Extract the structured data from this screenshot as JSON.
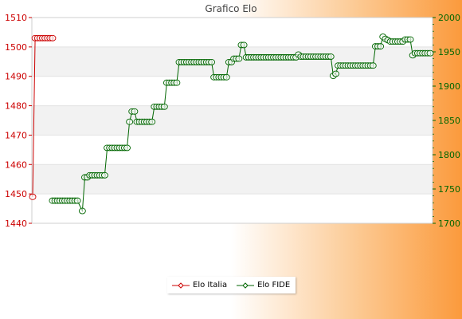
{
  "chart_data": {
    "type": "line",
    "title": "Grafico Elo",
    "xlabel": "",
    "ylabel": "",
    "y_left": {
      "ylim": [
        1440,
        1510
      ],
      "ticks": [
        1440,
        1450,
        1460,
        1470,
        1480,
        1490,
        1500,
        1510
      ],
      "color": "#cc0000"
    },
    "y_right": {
      "ylim": [
        1700,
        2000
      ],
      "ticks": [
        1700,
        1750,
        1800,
        1850,
        1900,
        1950,
        2000
      ],
      "color": "#006600"
    },
    "grid": true,
    "legend_position": "bottom-center",
    "series": [
      {
        "name": "Elo Italia",
        "axis": "left",
        "color": "#cc0000",
        "points": [
          [
            0,
            1449
          ],
          [
            1,
            1503
          ],
          [
            2,
            1503
          ],
          [
            3,
            1503
          ],
          [
            4,
            1503
          ],
          [
            5,
            1503
          ],
          [
            6,
            1503
          ],
          [
            7,
            1503
          ],
          [
            8,
            1503
          ]
        ]
      },
      {
        "name": "Elo FIDE",
        "axis": "right",
        "color": "#006600",
        "points": [
          [
            8,
            1733
          ],
          [
            9,
            1733
          ],
          [
            10,
            1733
          ],
          [
            11,
            1733
          ],
          [
            12,
            1733
          ],
          [
            13,
            1733
          ],
          [
            14,
            1733
          ],
          [
            15,
            1733
          ],
          [
            16,
            1733
          ],
          [
            17,
            1733
          ],
          [
            18,
            1733
          ],
          [
            20,
            1718
          ],
          [
            21,
            1767
          ],
          [
            22,
            1767
          ],
          [
            23,
            1770
          ],
          [
            24,
            1770
          ],
          [
            25,
            1770
          ],
          [
            26,
            1770
          ],
          [
            27,
            1770
          ],
          [
            28,
            1770
          ],
          [
            29,
            1770
          ],
          [
            30,
            1810
          ],
          [
            31,
            1810
          ],
          [
            32,
            1810
          ],
          [
            33,
            1810
          ],
          [
            34,
            1810
          ],
          [
            35,
            1810
          ],
          [
            36,
            1810
          ],
          [
            37,
            1810
          ],
          [
            38,
            1810
          ],
          [
            39,
            1848
          ],
          [
            40,
            1863
          ],
          [
            41,
            1863
          ],
          [
            42,
            1848
          ],
          [
            43,
            1848
          ],
          [
            44,
            1848
          ],
          [
            45,
            1848
          ],
          [
            46,
            1848
          ],
          [
            47,
            1848
          ],
          [
            48,
            1848
          ],
          [
            49,
            1870
          ],
          [
            50,
            1870
          ],
          [
            51,
            1870
          ],
          [
            52,
            1870
          ],
          [
            53,
            1870
          ],
          [
            54,
            1905
          ],
          [
            55,
            1905
          ],
          [
            56,
            1905
          ],
          [
            57,
            1905
          ],
          [
            58,
            1905
          ],
          [
            59,
            1935
          ],
          [
            60,
            1935
          ],
          [
            61,
            1935
          ],
          [
            62,
            1935
          ],
          [
            63,
            1935
          ],
          [
            64,
            1935
          ],
          [
            65,
            1935
          ],
          [
            66,
            1935
          ],
          [
            67,
            1935
          ],
          [
            68,
            1935
          ],
          [
            69,
            1935
          ],
          [
            70,
            1935
          ],
          [
            71,
            1935
          ],
          [
            72,
            1935
          ],
          [
            73,
            1913
          ],
          [
            74,
            1913
          ],
          [
            75,
            1913
          ],
          [
            76,
            1913
          ],
          [
            77,
            1913
          ],
          [
            78,
            1913
          ],
          [
            79,
            1935
          ],
          [
            80,
            1935
          ],
          [
            81,
            1940
          ],
          [
            82,
            1940
          ],
          [
            83,
            1940
          ],
          [
            84,
            1960
          ],
          [
            85,
            1960
          ],
          [
            86,
            1942
          ],
          [
            87,
            1942
          ],
          [
            88,
            1942
          ],
          [
            89,
            1942
          ],
          [
            90,
            1942
          ],
          [
            91,
            1942
          ],
          [
            92,
            1942
          ],
          [
            93,
            1942
          ],
          [
            94,
            1942
          ],
          [
            95,
            1942
          ],
          [
            96,
            1942
          ],
          [
            97,
            1942
          ],
          [
            98,
            1942
          ],
          [
            99,
            1942
          ],
          [
            100,
            1942
          ],
          [
            101,
            1942
          ],
          [
            102,
            1942
          ],
          [
            103,
            1942
          ],
          [
            104,
            1942
          ],
          [
            105,
            1942
          ],
          [
            106,
            1942
          ],
          [
            107,
            1946
          ],
          [
            108,
            1943
          ],
          [
            109,
            1943
          ],
          [
            110,
            1943
          ],
          [
            111,
            1943
          ],
          [
            112,
            1943
          ],
          [
            113,
            1943
          ],
          [
            114,
            1943
          ],
          [
            115,
            1943
          ],
          [
            116,
            1943
          ],
          [
            117,
            1943
          ],
          [
            118,
            1943
          ],
          [
            119,
            1943
          ],
          [
            120,
            1943
          ],
          [
            121,
            1915
          ],
          [
            122,
            1918
          ],
          [
            123,
            1930
          ],
          [
            124,
            1930
          ],
          [
            125,
            1930
          ],
          [
            126,
            1930
          ],
          [
            127,
            1930
          ],
          [
            128,
            1930
          ],
          [
            129,
            1930
          ],
          [
            130,
            1930
          ],
          [
            131,
            1930
          ],
          [
            132,
            1930
          ],
          [
            133,
            1930
          ],
          [
            134,
            1930
          ],
          [
            135,
            1930
          ],
          [
            136,
            1930
          ],
          [
            137,
            1930
          ],
          [
            138,
            1958
          ],
          [
            139,
            1958
          ],
          [
            140,
            1958
          ],
          [
            141,
            1972
          ],
          [
            142,
            1969
          ],
          [
            143,
            1967
          ],
          [
            144,
            1965
          ],
          [
            145,
            1965
          ],
          [
            146,
            1965
          ],
          [
            147,
            1965
          ],
          [
            148,
            1965
          ],
          [
            149,
            1965
          ],
          [
            150,
            1968
          ],
          [
            151,
            1968
          ],
          [
            152,
            1968
          ],
          [
            153,
            1945
          ],
          [
            154,
            1948
          ],
          [
            155,
            1948
          ],
          [
            156,
            1948
          ],
          [
            157,
            1948
          ],
          [
            158,
            1948
          ],
          [
            159,
            1948
          ],
          [
            160,
            1948
          ]
        ]
      }
    ]
  }
}
